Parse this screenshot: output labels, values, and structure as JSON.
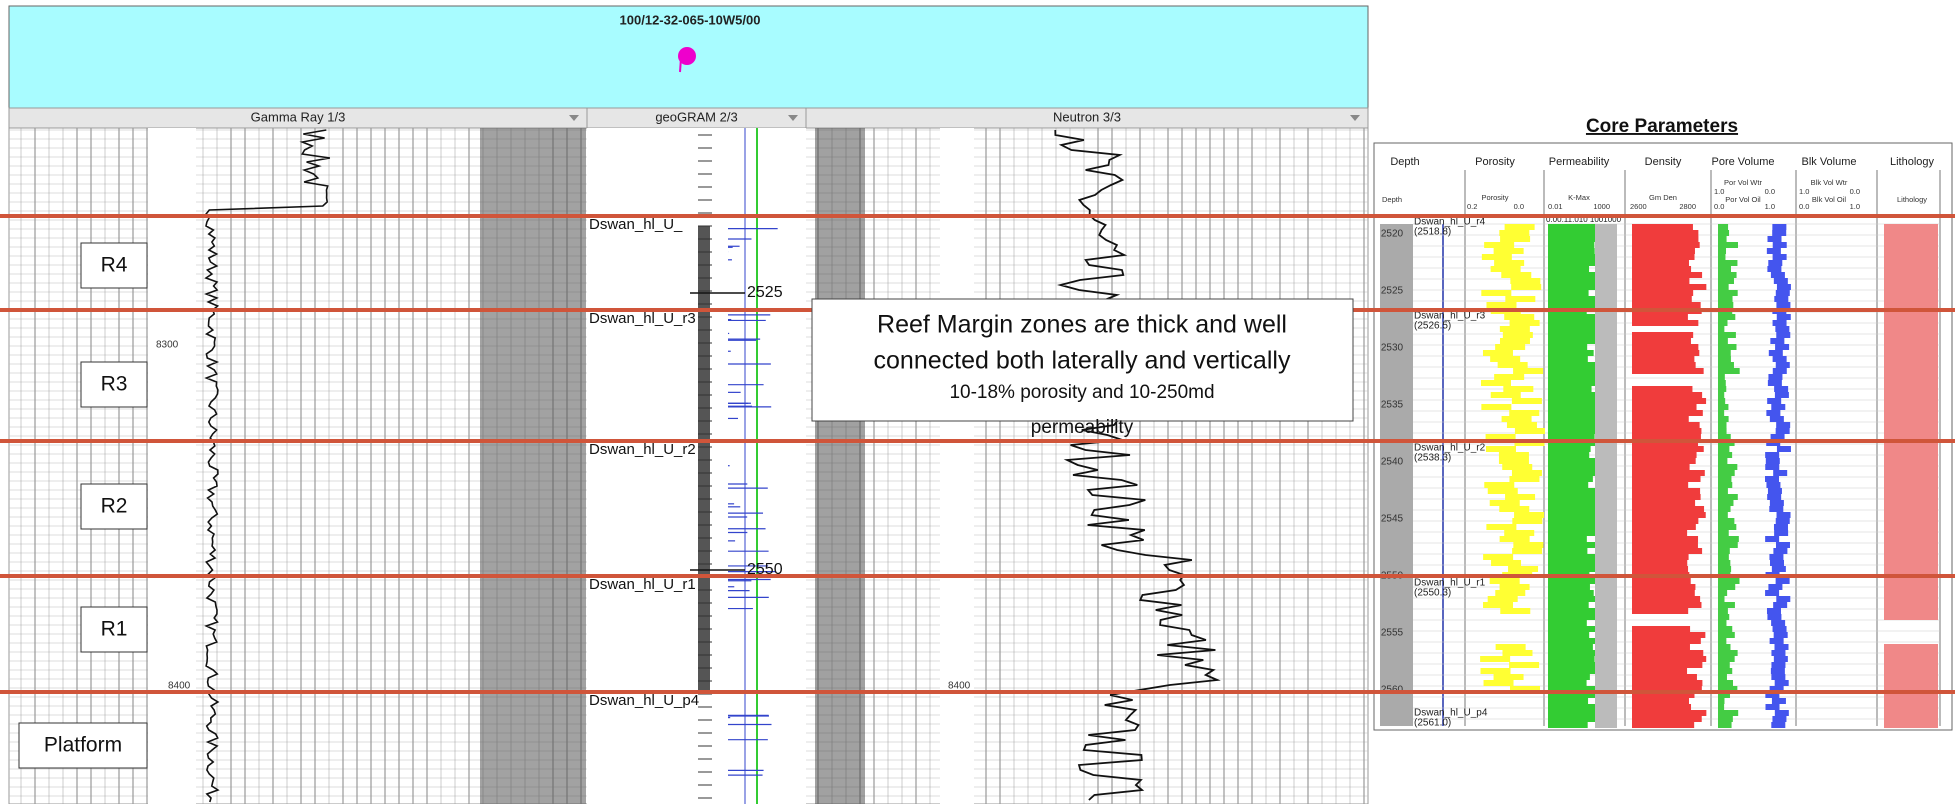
{
  "header": {
    "well_id": "100/12-32-065-10W5/00"
  },
  "tracks": [
    "Gamma Ray 1/3",
    "geoGRAM 2/3",
    "Neutron 3/3"
  ],
  "zones": [
    "R4",
    "R3",
    "R2",
    "R1",
    "Platform"
  ],
  "log_tops": [
    "Dswan_hl_U_",
    "Dswan_hl_U_r3",
    "Dswan_hl_U_r2",
    "Dswan_hl_U_r1",
    "Dswan_hl_U_p4"
  ],
  "log_depths": [
    2525,
    2550
  ],
  "log_depth_marks": [
    8300,
    8400,
    8400
  ],
  "annotation": [
    "Reef Margin zones are thick and well",
    "connected both laterally and vertically",
    "10-18% porosity and 10-250md",
    "permeability"
  ],
  "core_panel": {
    "title": "Core Parameters",
    "columns": [
      "Depth",
      "Porosity",
      "Permeability",
      "Density",
      "Pore Volume",
      "Blk Volume",
      "Lithology"
    ],
    "subheads": {
      "depth": "Depth",
      "porosity": "Porosity",
      "porosity_scale": [
        "0.2",
        "0.0"
      ],
      "kmax": "K-Max",
      "kmax_scale": [
        "0.01",
        "1000"
      ],
      "density": "Gm Den",
      "density_scale": [
        2600,
        2800
      ],
      "por_vol_wtr": "Por Vol Wtr",
      "por_vol_wtr_scale": [
        "1.0",
        "0.0"
      ],
      "por_vol_oil": "Por Vol Oil",
      "por_vol_oil_scale": [
        "0.0",
        "1.0"
      ],
      "blk_vol_wtr": "Blk Vol Wtr",
      "blk_vol_wtr_scale": [
        "1.0",
        "0.0"
      ],
      "blk_vol_oil": "Blk Vol Oil",
      "blk_vol_oil_scale": [
        "0.0",
        "1.0"
      ],
      "lithology": "Lithology"
    },
    "perm_scale_labels": "0.00.11.010 1001000",
    "depths": [
      2520,
      2525,
      2530,
      2535,
      2540,
      2545,
      2550,
      2555,
      2560
    ],
    "tops": [
      {
        "name": "Dswan_hl_U_r4",
        "depth": "(2518.8)"
      },
      {
        "name": "Dswan_hl_U_r3",
        "depth": "(2526.5)"
      },
      {
        "name": "Dswan_hl_U_r2",
        "depth": "(2538.3)"
      },
      {
        "name": "Dswan_hl_U_r1",
        "depth": "(2550.3)"
      },
      {
        "name": "Dswan_hl_U_p4",
        "depth": "(2561.0)"
      }
    ]
  }
}
